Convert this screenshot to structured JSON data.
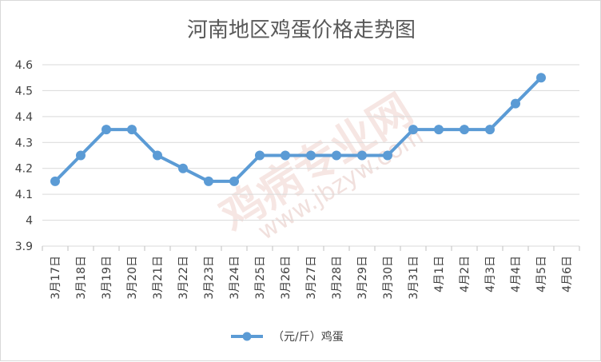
{
  "chart_data": {
    "type": "line",
    "title": "河南地区鸡蛋价格走势图",
    "categories": [
      "3月17日",
      "3月18日",
      "3月19日",
      "3月20日",
      "3月21日",
      "3月22日",
      "3月23日",
      "3月24日",
      "3月25日",
      "3月26日",
      "3月27日",
      "3月28日",
      "3月29日",
      "3月30日",
      "3月31日",
      "4月1日",
      "4月2日",
      "4月3日",
      "4月4日",
      "4月5日",
      "4月6日"
    ],
    "series": [
      {
        "name": "（元/斤）鸡蛋",
        "values": [
          4.15,
          4.25,
          4.35,
          4.35,
          4.25,
          4.2,
          4.15,
          4.15,
          4.25,
          4.25,
          4.25,
          4.25,
          4.25,
          4.25,
          4.35,
          4.35,
          4.35,
          4.35,
          4.45,
          4.55,
          null
        ]
      }
    ],
    "ylim": [
      3.9,
      4.6
    ],
    "yticks": [
      "3.9",
      "4",
      "4.1",
      "4.2",
      "4.3",
      "4.4",
      "4.5",
      "4.6"
    ],
    "grid": true,
    "legend": "bottom",
    "color": "#5b9bd5"
  },
  "watermark": {
    "text": "鸡病专业网",
    "url": "www.jbzyw.com"
  }
}
